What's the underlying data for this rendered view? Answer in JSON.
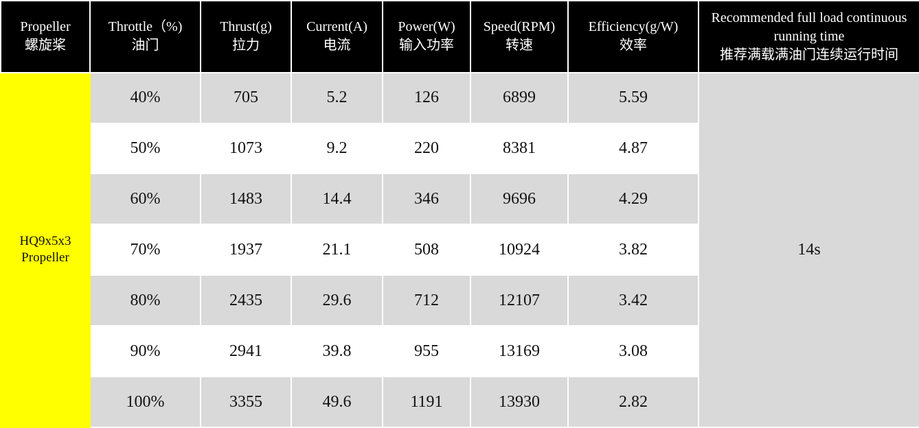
{
  "header": {
    "columns": [
      {
        "en": "Propeller",
        "zh": "螺旋桨"
      },
      {
        "en": "Throttle（%)",
        "zh": "油门"
      },
      {
        "en": "Thrust(g)",
        "zh": "拉力"
      },
      {
        "en": "Current(A)",
        "zh": "电流"
      },
      {
        "en": "Power(W)",
        "zh": "输入功率"
      },
      {
        "en": "Speed(RPM)",
        "zh": "转速"
      },
      {
        "en": "Efficiency(g/W)",
        "zh": "效率"
      },
      {
        "en": "Recommended full load  continuous running time",
        "zh": "推荐满载满油门连续运行时间"
      }
    ]
  },
  "propeller": {
    "lines": [
      "HQ9x5x3",
      "Propeller"
    ]
  },
  "runtime": "14s",
  "rows": [
    [
      "40%",
      "705",
      "5.2",
      "126",
      "6899",
      "5.59"
    ],
    [
      "50%",
      "1073",
      "9.2",
      "220",
      "8381",
      "4.87"
    ],
    [
      "60%",
      "1483",
      "14.4",
      "346",
      "9696",
      "4.29"
    ],
    [
      "70%",
      "1937",
      "21.1",
      "508",
      "10924",
      "3.82"
    ],
    [
      "80%",
      "2435",
      "29.6",
      "712",
      "12107",
      "3.42"
    ],
    [
      "90%",
      "2941",
      "39.8",
      "955",
      "13169",
      "3.08"
    ],
    [
      "100%",
      "3355",
      "49.6",
      "1191",
      "13930",
      "2.82"
    ]
  ]
}
